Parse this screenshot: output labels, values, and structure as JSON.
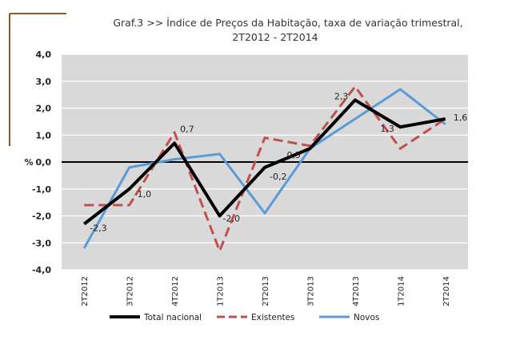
{
  "chart_data": {
    "type": "line",
    "title_line1": "Graf.3  >> Índice de Preços da Habitação, taxa de variação trimestral,",
    "title_line2": "2T2012 - 2T2014",
    "ylabel": "%",
    "ylim": [
      -4,
      4
    ],
    "yticks": [
      "4,0",
      "3,0",
      "2,0",
      "1,0",
      "0,0",
      "-1,0",
      "-2,0",
      "-3,0",
      "-4,0"
    ],
    "categories": [
      "2T2012",
      "3T2012",
      "4T2012",
      "1T2013",
      "2T2013",
      "3T2013",
      "4T2013",
      "1T2014",
      "2T2014"
    ],
    "series": [
      {
        "name": "Total nacional",
        "color": "#000000",
        "style": "solid",
        "values": [
          -2.3,
          -1.0,
          0.7,
          -2.0,
          -0.2,
          0.5,
          2.3,
          1.3,
          1.6
        ],
        "labels": [
          "-2,3",
          "-1,0",
          "0,7",
          "-2,0",
          "-0,2",
          "0,5",
          "2,3",
          "1,3",
          "1,6"
        ]
      },
      {
        "name": "Existentes",
        "color": "#c0504d",
        "style": "dashed",
        "values": [
          -1.6,
          -1.6,
          1.1,
          -3.3,
          0.9,
          0.6,
          2.8,
          0.5,
          1.6
        ]
      },
      {
        "name": "Novos",
        "color": "#5b9bd5",
        "style": "solid",
        "values": [
          -3.2,
          -0.2,
          0.1,
          0.3,
          -1.9,
          0.5,
          1.6,
          2.7,
          1.4
        ]
      }
    ],
    "legend_position": "bottom"
  }
}
